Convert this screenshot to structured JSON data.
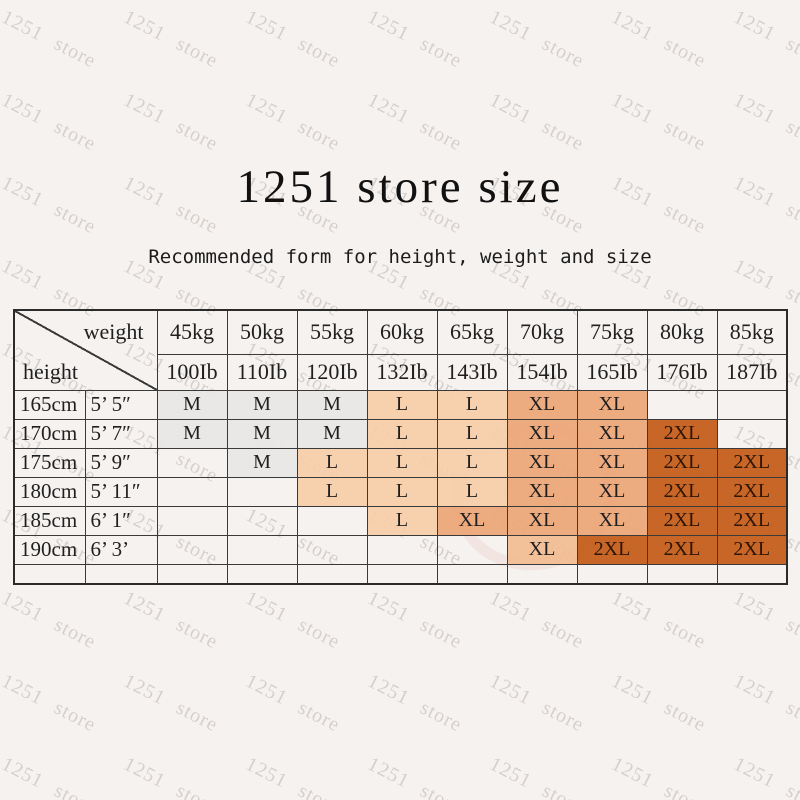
{
  "title": "1251 store size",
  "subtitle": "Recommended form for height, weight and size",
  "watermark": {
    "text": "1251 store",
    "stamp_text": "1251"
  },
  "colors": {
    "background": "#f5f2f0",
    "border": "#3a3a3a",
    "text": "#1f1f1f",
    "watermark": "rgba(168,158,152,0.40)",
    "tones": {
      "m": "rgba(232,231,229,0.92)",
      "l": "rgba(246,205,169,0.93)",
      "xl": "rgba(236,166,120,0.94)",
      "xl2": "rgba(241,188,147,0.94)",
      "xxl": "rgba(197,96,30,0.96)"
    }
  },
  "table": {
    "corner": {
      "weight": "weight",
      "height": "height"
    },
    "weight_kg": [
      "45kg",
      "50kg",
      "55kg",
      "60kg",
      "65kg",
      "70kg",
      "75kg",
      "80kg",
      "85kg"
    ],
    "weight_lb": [
      "100Ib",
      "110Ib",
      "120Ib",
      "132Ib",
      "143Ib",
      "154Ib",
      "165Ib",
      "176Ib",
      "187Ib"
    ],
    "rows": [
      {
        "cm": "165cm",
        "ft": "5’ 5″",
        "cells": [
          {
            "label": "M",
            "tone": "m"
          },
          {
            "label": "M",
            "tone": "m"
          },
          {
            "label": "M",
            "tone": "m"
          },
          {
            "label": "L",
            "tone": "l"
          },
          {
            "label": "L",
            "tone": "l"
          },
          {
            "label": "XL",
            "tone": "xl"
          },
          {
            "label": "XL",
            "tone": "xl"
          },
          {
            "label": "",
            "tone": ""
          },
          {
            "label": "",
            "tone": ""
          }
        ]
      },
      {
        "cm": "170cm",
        "ft": "5’ 7″",
        "cells": [
          {
            "label": "M",
            "tone": "m"
          },
          {
            "label": "M",
            "tone": "m"
          },
          {
            "label": "M",
            "tone": "m"
          },
          {
            "label": "L",
            "tone": "l"
          },
          {
            "label": "L",
            "tone": "l"
          },
          {
            "label": "XL",
            "tone": "xl"
          },
          {
            "label": "XL",
            "tone": "xl"
          },
          {
            "label": "2XL",
            "tone": "xxl"
          },
          {
            "label": "",
            "tone": ""
          }
        ]
      },
      {
        "cm": "175cm",
        "ft": "5’ 9″",
        "cells": [
          {
            "label": "",
            "tone": ""
          },
          {
            "label": "M",
            "tone": "m"
          },
          {
            "label": "L",
            "tone": "l"
          },
          {
            "label": "L",
            "tone": "l"
          },
          {
            "label": "L",
            "tone": "l"
          },
          {
            "label": "XL",
            "tone": "xl"
          },
          {
            "label": "XL",
            "tone": "xl"
          },
          {
            "label": "2XL",
            "tone": "xxl"
          },
          {
            "label": "2XL",
            "tone": "xxl"
          }
        ]
      },
      {
        "cm": "180cm",
        "ft": "5’ 11″",
        "cells": [
          {
            "label": "",
            "tone": ""
          },
          {
            "label": "",
            "tone": ""
          },
          {
            "label": "L",
            "tone": "l"
          },
          {
            "label": "L",
            "tone": "l"
          },
          {
            "label": "L",
            "tone": "l"
          },
          {
            "label": "XL",
            "tone": "xl"
          },
          {
            "label": "XL",
            "tone": "xl"
          },
          {
            "label": "2XL",
            "tone": "xxl"
          },
          {
            "label": "2XL",
            "tone": "xxl"
          }
        ]
      },
      {
        "cm": "185cm",
        "ft": "6’ 1″",
        "cells": [
          {
            "label": "",
            "tone": ""
          },
          {
            "label": "",
            "tone": ""
          },
          {
            "label": "",
            "tone": ""
          },
          {
            "label": "L",
            "tone": "l"
          },
          {
            "label": "XL",
            "tone": "xl"
          },
          {
            "label": "XL",
            "tone": "xl"
          },
          {
            "label": "XL",
            "tone": "xl"
          },
          {
            "label": "2XL",
            "tone": "xxl"
          },
          {
            "label": "2XL",
            "tone": "xxl"
          }
        ]
      },
      {
        "cm": "190cm",
        "ft": "6’ 3’",
        "cells": [
          {
            "label": "",
            "tone": ""
          },
          {
            "label": "",
            "tone": ""
          },
          {
            "label": "",
            "tone": ""
          },
          {
            "label": "",
            "tone": ""
          },
          {
            "label": "",
            "tone": ""
          },
          {
            "label": "XL",
            "tone": "xl2"
          },
          {
            "label": "2XL",
            "tone": "xxl"
          },
          {
            "label": "2XL",
            "tone": "xxl"
          },
          {
            "label": "2XL",
            "tone": "xxl"
          }
        ]
      },
      {
        "cm": "",
        "ft": "",
        "cells": [
          {
            "label": "",
            "tone": ""
          },
          {
            "label": "",
            "tone": ""
          },
          {
            "label": "",
            "tone": ""
          },
          {
            "label": "",
            "tone": ""
          },
          {
            "label": "",
            "tone": ""
          },
          {
            "label": "",
            "tone": ""
          },
          {
            "label": "",
            "tone": ""
          },
          {
            "label": "",
            "tone": ""
          },
          {
            "label": "",
            "tone": ""
          }
        ]
      }
    ]
  }
}
